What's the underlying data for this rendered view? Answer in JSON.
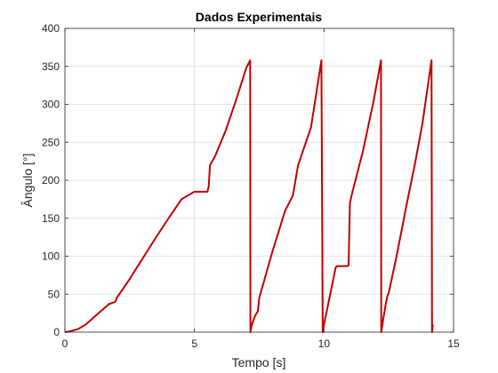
{
  "chart_data": {
    "type": "line",
    "title": "Dados Experimentais",
    "xlabel": "Tempo [s]",
    "ylabel": "Ângulo [°]",
    "xlim": [
      0,
      15
    ],
    "ylim": [
      0,
      400
    ],
    "xticks": [
      0,
      5,
      10,
      15
    ],
    "yticks": [
      0,
      50,
      100,
      150,
      200,
      250,
      300,
      350,
      400
    ],
    "grid": true,
    "series": [
      {
        "color": "#c00000",
        "x": [
          0,
          0.2,
          0.5,
          0.8,
          1.1,
          1.4,
          1.7,
          1.95,
          2.0,
          2.5,
          3.0,
          3.5,
          4.0,
          4.5,
          5.0,
          5.5,
          5.55,
          5.6,
          5.8,
          6.2,
          6.6,
          7.0,
          7.15,
          7.16,
          7.2,
          7.3,
          7.35,
          7.45,
          7.5,
          8.0,
          8.5,
          8.8,
          9.0,
          9.5,
          9.9,
          9.95,
          10.0,
          10.45,
          10.5,
          10.7,
          10.9,
          10.95,
          11.0,
          11.1,
          11.5,
          11.9,
          12.2,
          12.21,
          12.3,
          12.4,
          12.45,
          12.5,
          12.8,
          13.2,
          13.5,
          13.8,
          14.15,
          14.17,
          14.2
        ],
        "y": [
          0,
          1,
          4,
          10,
          19,
          28,
          37,
          40,
          45,
          70,
          97,
          124,
          150,
          175,
          185,
          185,
          192,
          220,
          232,
          265,
          305,
          348,
          358,
          0,
          8,
          18,
          22,
          28,
          45,
          105,
          160,
          180,
          220,
          270,
          358,
          0,
          10,
          85,
          87,
          87,
          87,
          88,
          170,
          185,
          238,
          302,
          358,
          0,
          20,
          40,
          48,
          52,
          100,
          170,
          220,
          275,
          358,
          0,
          10
        ]
      }
    ]
  }
}
